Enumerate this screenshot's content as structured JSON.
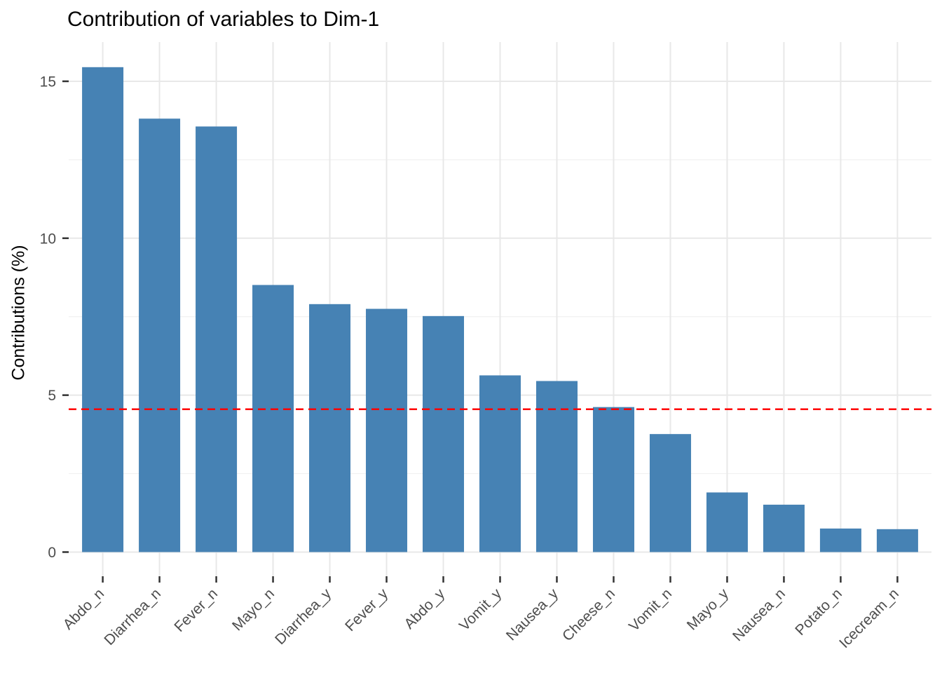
{
  "chart_data": {
    "type": "bar",
    "title": "Contribution of variables to Dim-1",
    "ylabel": "Contributions (%)",
    "categories": [
      "Abdo_n",
      "Diarrhea_n",
      "Fever_n",
      "Mayo_n",
      "Diarrhea_y",
      "Fever_y",
      "Abdo_y",
      "Vomit_y",
      "Nausea_y",
      "Cheese_n",
      "Vomit_n",
      "Mayo_y",
      "Nausea_n",
      "Potato_n",
      "Icecream_n"
    ],
    "values": [
      15.45,
      13.81,
      13.56,
      8.51,
      7.9,
      7.75,
      7.52,
      5.63,
      5.45,
      4.62,
      3.76,
      1.9,
      1.51,
      0.75,
      0.73
    ],
    "ylim": [
      0,
      16.2
    ],
    "yticks": [
      0,
      5,
      10,
      15
    ],
    "ytick_labels": [
      "0",
      "5",
      "10",
      "15"
    ],
    "yticks_minor": [
      2.5,
      7.5,
      12.5
    ],
    "grid": true,
    "legend": "none",
    "bar_color": "#4682B4",
    "reference_line": {
      "value": 4.55,
      "color": "#FF0000",
      "style": "dashed"
    },
    "colors": {
      "grid_major": "#E8E8E8",
      "grid_minor": "#F1F1F1",
      "axis_text": "#4D4D4D",
      "tick_mark": "#333333",
      "title": "#000000"
    }
  }
}
